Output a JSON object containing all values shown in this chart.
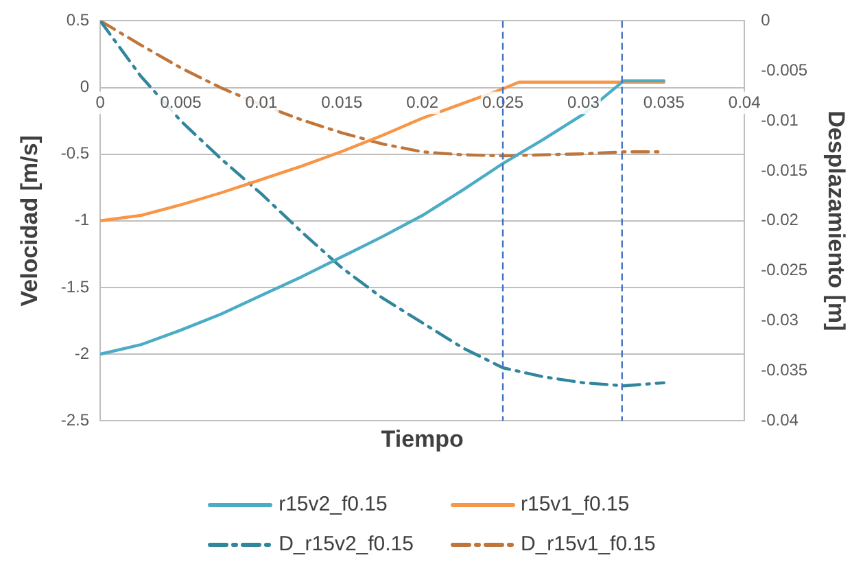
{
  "chart_data": {
    "type": "line",
    "xlabel": "Tiempo",
    "ylabel": "Velocidad [m/s]",
    "y2label": "Desplazamiento [m]",
    "xlim": [
      0,
      0.04
    ],
    "xticks": [
      0,
      0.005,
      0.01,
      0.015,
      0.02,
      0.025,
      0.03,
      0.035,
      0.04
    ],
    "ylim": [
      -2.5,
      0.5
    ],
    "yticks": [
      0.5,
      0,
      -0.5,
      -1,
      -1.5,
      -2,
      -2.5
    ],
    "y2lim": [
      -0.04,
      0
    ],
    "y2ticks": [
      0,
      -0.005,
      -0.01,
      -0.015,
      -0.02,
      -0.025,
      -0.03,
      -0.035,
      -0.04
    ],
    "grid": "y",
    "legend": "bottom",
    "marker": "none",
    "series": [
      {
        "name": "r15v2_f0.15",
        "color": "#4bacc6",
        "line_style": "solid",
        "x": [
          0,
          0.0025,
          0.005,
          0.0075,
          0.01,
          0.0125,
          0.015,
          0.0175,
          0.02,
          0.0225,
          0.025,
          0.0275,
          0.03,
          0.0325,
          0.035
        ],
        "values": [
          -2,
          -1.93,
          -1.82,
          -1.7,
          -1.56,
          -1.42,
          -1.27,
          -1.12,
          -0.96,
          -0.77,
          -0.57,
          -0.39,
          -0.2,
          0.05,
          0.05
        ]
      },
      {
        "name": "r15v1_f0.15",
        "color": "#f79646",
        "line_style": "solid",
        "x": [
          0,
          0.0025,
          0.005,
          0.0075,
          0.01,
          0.0125,
          0.015,
          0.0175,
          0.02,
          0.0225,
          0.025,
          0.026,
          0.03,
          0.035
        ],
        "values": [
          -1,
          -0.96,
          -0.88,
          -0.79,
          -0.69,
          -0.59,
          -0.48,
          -0.36,
          -0.23,
          -0.12,
          -0.01,
          0.04,
          0.04,
          0.04
        ]
      },
      {
        "name": "D_r15v2_f0.15",
        "color": "#31859c",
        "line_style": "dashed",
        "axis": "y2",
        "x": [
          0,
          0.0025,
          0.005,
          0.0075,
          0.01,
          0.0125,
          0.015,
          0.0175,
          0.02,
          0.0225,
          0.025,
          0.0275,
          0.03,
          0.0325,
          0.035
        ],
        "values": [
          0,
          -0.0055,
          -0.01,
          -0.0138,
          -0.0173,
          -0.0211,
          -0.0247,
          -0.0277,
          -0.0302,
          -0.0327,
          -0.0347,
          -0.0356,
          -0.0362,
          -0.0365,
          -0.0362
        ]
      },
      {
        "name": "D_r15v1_f0.15",
        "color": "#c0753a",
        "line_style": "dashed",
        "axis": "y2",
        "x": [
          0,
          0.0025,
          0.005,
          0.0075,
          0.01,
          0.0125,
          0.015,
          0.0175,
          0.02,
          0.0225,
          0.025,
          0.03,
          0.0325,
          0.035
        ],
        "values": [
          0,
          -0.0024,
          -0.0047,
          -0.0067,
          -0.0084,
          -0.0099,
          -0.0112,
          -0.0123,
          -0.0131,
          -0.0134,
          -0.0135,
          -0.0133,
          -0.0131,
          -0.0131
        ]
      }
    ],
    "ref_lines": [
      {
        "axis": "x",
        "value": 0.025,
        "color": "#4472c4",
        "line_style": "dashed"
      },
      {
        "axis": "x",
        "value": 0.0324,
        "color": "#4472c4",
        "line_style": "dashed"
      }
    ]
  }
}
